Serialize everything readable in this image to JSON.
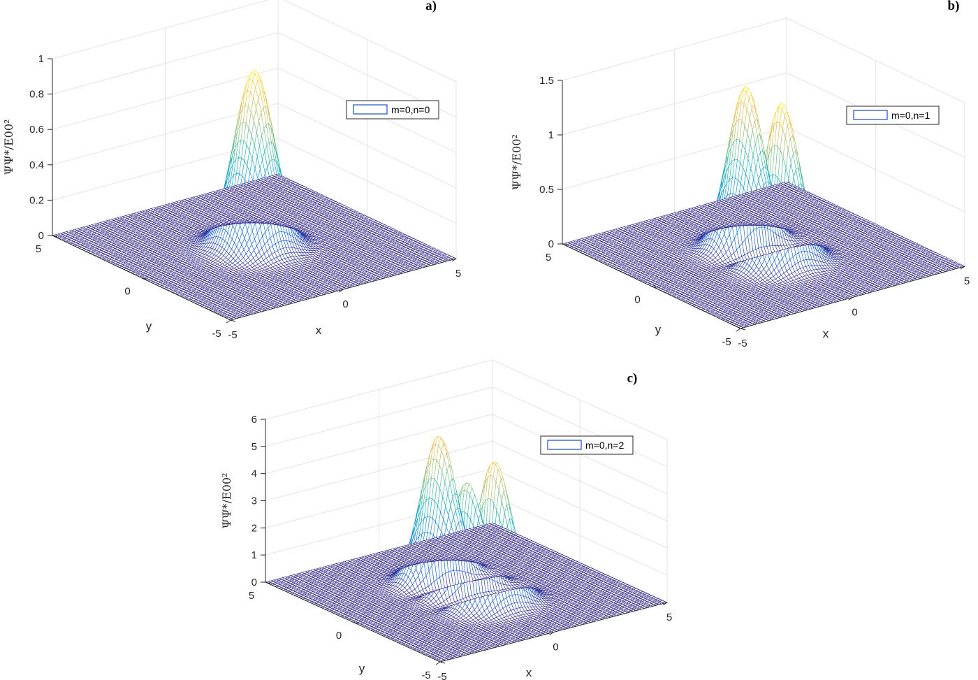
{
  "chart_data": [
    {
      "type": "surface",
      "panel_label": "a)",
      "legend": "m=0,n=0",
      "xlabel": "x",
      "ylabel": "y",
      "zlabel": "ΨΨ*/E00²",
      "xlim": [
        -5,
        5
      ],
      "ylim": [
        -5,
        5
      ],
      "zlim": [
        0,
        1
      ],
      "x_ticks": [
        "-5",
        "0",
        "5"
      ],
      "y_ticks": [
        "-5",
        "0",
        "5"
      ],
      "z_ticks": [
        "0",
        "0.2",
        "0.4",
        "0.6",
        "0.8",
        "1"
      ],
      "peaks": [
        {
          "x": 0,
          "y": 0,
          "z": 1.0
        }
      ],
      "colormap": "parula",
      "grid": true,
      "legend_location": "top-right"
    },
    {
      "type": "surface",
      "panel_label": "b)",
      "legend": "m=0,n=1",
      "xlabel": "x",
      "ylabel": "y",
      "zlabel": "ΨΨ*/E00²",
      "xlim": [
        -5,
        5
      ],
      "ylim": [
        -5,
        5
      ],
      "zlim": [
        0,
        1.5
      ],
      "x_ticks": [
        "-5",
        "0",
        "5"
      ],
      "y_ticks": [
        "-5",
        "0",
        "5"
      ],
      "z_ticks": [
        "0",
        "0.5",
        "1",
        "1.5"
      ],
      "peaks": [
        {
          "x": 0,
          "y": -1,
          "z": 1.47
        },
        {
          "x": 0,
          "y": 1,
          "z": 1.47
        }
      ],
      "colormap": "parula",
      "grid": true,
      "legend_location": "top-right"
    },
    {
      "type": "surface",
      "panel_label": "c)",
      "legend": "m=0,n=2",
      "xlabel": "x",
      "ylabel": "y",
      "zlabel": "ΨΨ*/E00²",
      "xlim": [
        -5,
        5
      ],
      "ylim": [
        -5,
        5
      ],
      "zlim": [
        0,
        6
      ],
      "x_ticks": [
        "-5",
        "0",
        "5"
      ],
      "y_ticks": [
        "-5",
        "0",
        "5"
      ],
      "z_ticks": [
        "0",
        "1",
        "2",
        "3",
        "4",
        "5",
        "6"
      ],
      "peaks": [
        {
          "x": 0,
          "y": -1.73,
          "z": 5.3
        },
        {
          "x": 0,
          "y": 0,
          "z": 3.6
        },
        {
          "x": 0,
          "y": 1.73,
          "z": 5.3
        }
      ],
      "colormap": "parula",
      "grid": true,
      "legend_location": "top-right"
    }
  ]
}
